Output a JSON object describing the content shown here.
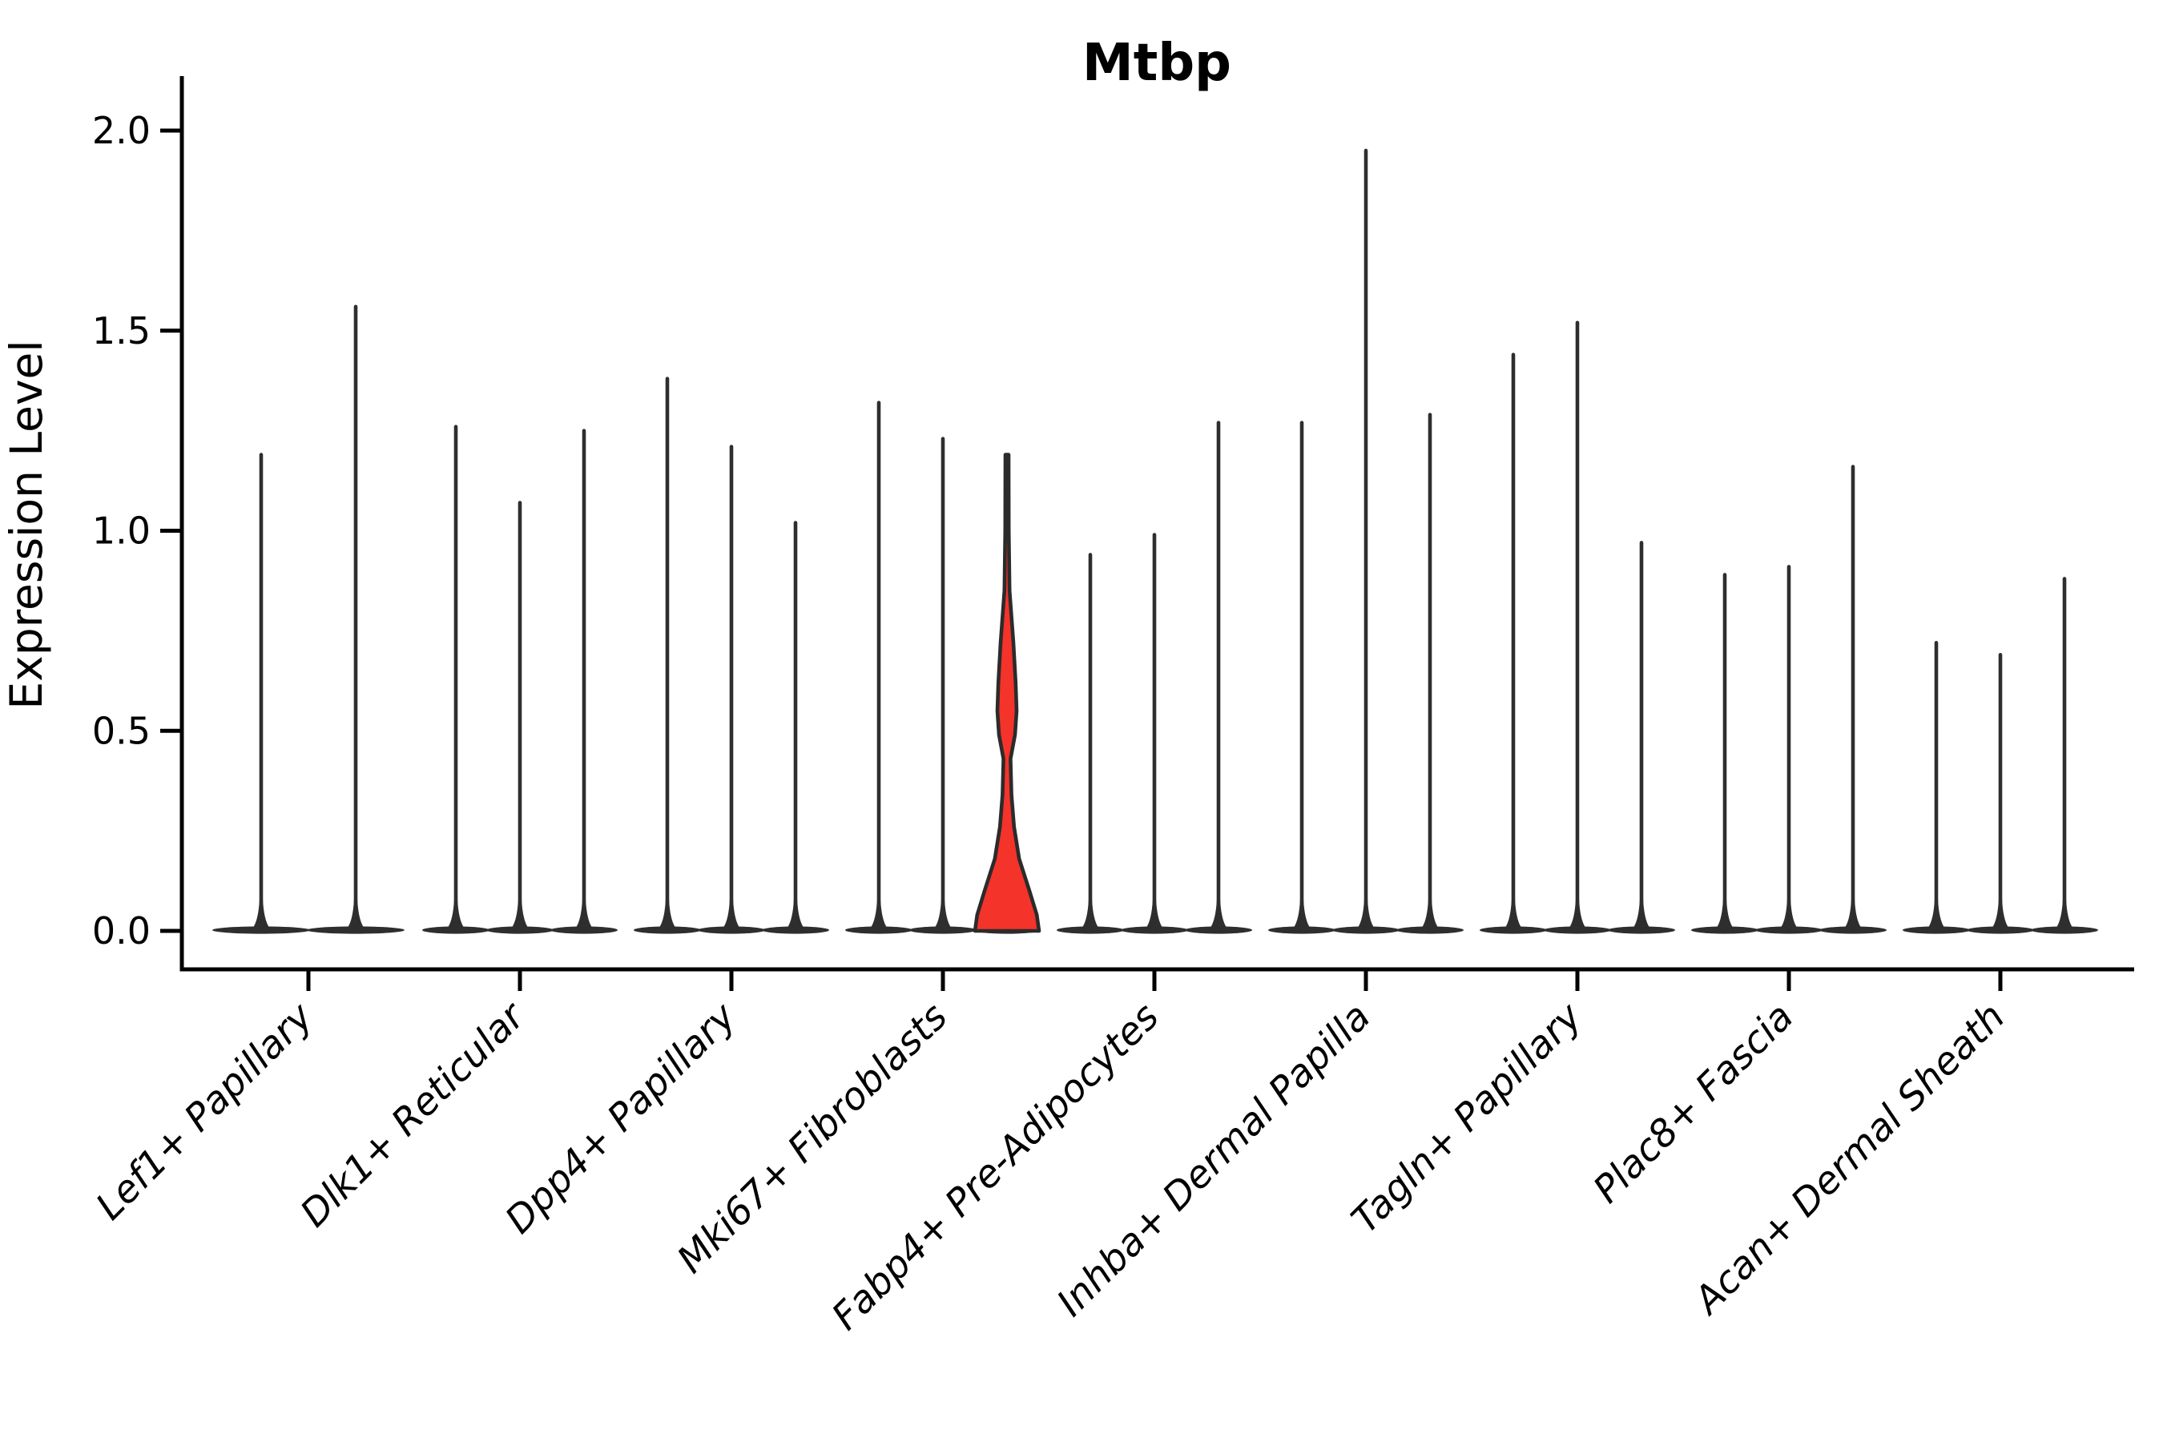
{
  "title": "Mtbp",
  "axes": {
    "ylabel": "Expression Level",
    "ytick_labels": [
      "0.0",
      "0.5",
      "1.0",
      "1.5",
      "2.0"
    ]
  },
  "colors": {
    "background": "#ffffff",
    "violin_line": "#2e2e2e",
    "axis": "#000000",
    "highlight_fill": "#f4332b",
    "highlight_stroke": "#2b2b2b",
    "text": "#000000"
  },
  "chart_data": {
    "type": "violin",
    "title": "Mtbp",
    "xlabel": "",
    "ylabel": "Expression Level",
    "ylim": [
      0.0,
      2.0
    ],
    "yticks": [
      0.0,
      0.5,
      1.0,
      1.5,
      2.0
    ],
    "legend": "none",
    "grid": false,
    "description": "Seurat-style stacked violin plot of Mtbp expression; most cells express 0 (flat bases with thin max-expression spikes). One violin (3rd of Mki67+ Fibroblasts) is highlighted red with a visible density bulge.",
    "categories": [
      "Lef1+ Papillary",
      "Dlk1+ Reticular",
      "Dpp4+ Papillary",
      "Mki67+ Fibroblasts",
      "Fabp4+ Pre-Adipocytes",
      "Inhba+ Dermal Papilla",
      "Tagln+ Papillary",
      "Plac8+ Fascia",
      "Acan+ Dermal Sheath"
    ],
    "groups": [
      {
        "label": "Lef1+ Papillary",
        "violin_max_expression": [
          1.19,
          1.56
        ]
      },
      {
        "label": "Dlk1+ Reticular",
        "violin_max_expression": [
          1.26,
          1.07,
          1.25
        ]
      },
      {
        "label": "Dpp4+ Papillary",
        "violin_max_expression": [
          1.38,
          1.21,
          1.02
        ]
      },
      {
        "label": "Mki67+ Fibroblasts",
        "violin_max_expression": [
          1.32,
          1.23,
          1.19
        ]
      },
      {
        "label": "Fabp4+ Pre-Adipocytes",
        "violin_max_expression": [
          0.94,
          0.99,
          1.27
        ]
      },
      {
        "label": "Inhba+ Dermal Papilla",
        "violin_max_expression": [
          1.27,
          1.95,
          1.29
        ]
      },
      {
        "label": "Tagln+ Papillary",
        "violin_max_expression": [
          1.44,
          1.52,
          0.97
        ]
      },
      {
        "label": "Plac8+ Fascia",
        "violin_max_expression": [
          0.89,
          0.91,
          1.16
        ]
      },
      {
        "label": "Acan+ Dermal Sheath",
        "violin_max_expression": [
          0.72,
          0.69,
          0.88
        ]
      }
    ],
    "highlight": {
      "group_index": 3,
      "violin_index": 2,
      "fill": "#f4332b",
      "stroke": "#2b2b2b",
      "max_expression": 1.19,
      "profile_value_halfwidth": [
        [
          1.19,
          0.05
        ],
        [
          1.0,
          0.055
        ],
        [
          0.85,
          0.08
        ],
        [
          0.72,
          0.2
        ],
        [
          0.62,
          0.27
        ],
        [
          0.55,
          0.3
        ],
        [
          0.49,
          0.25
        ],
        [
          0.43,
          0.11
        ],
        [
          0.34,
          0.14
        ],
        [
          0.26,
          0.22
        ],
        [
          0.18,
          0.38
        ],
        [
          0.1,
          0.7
        ],
        [
          0.04,
          0.93
        ],
        [
          0.0,
          1.0
        ]
      ]
    }
  }
}
